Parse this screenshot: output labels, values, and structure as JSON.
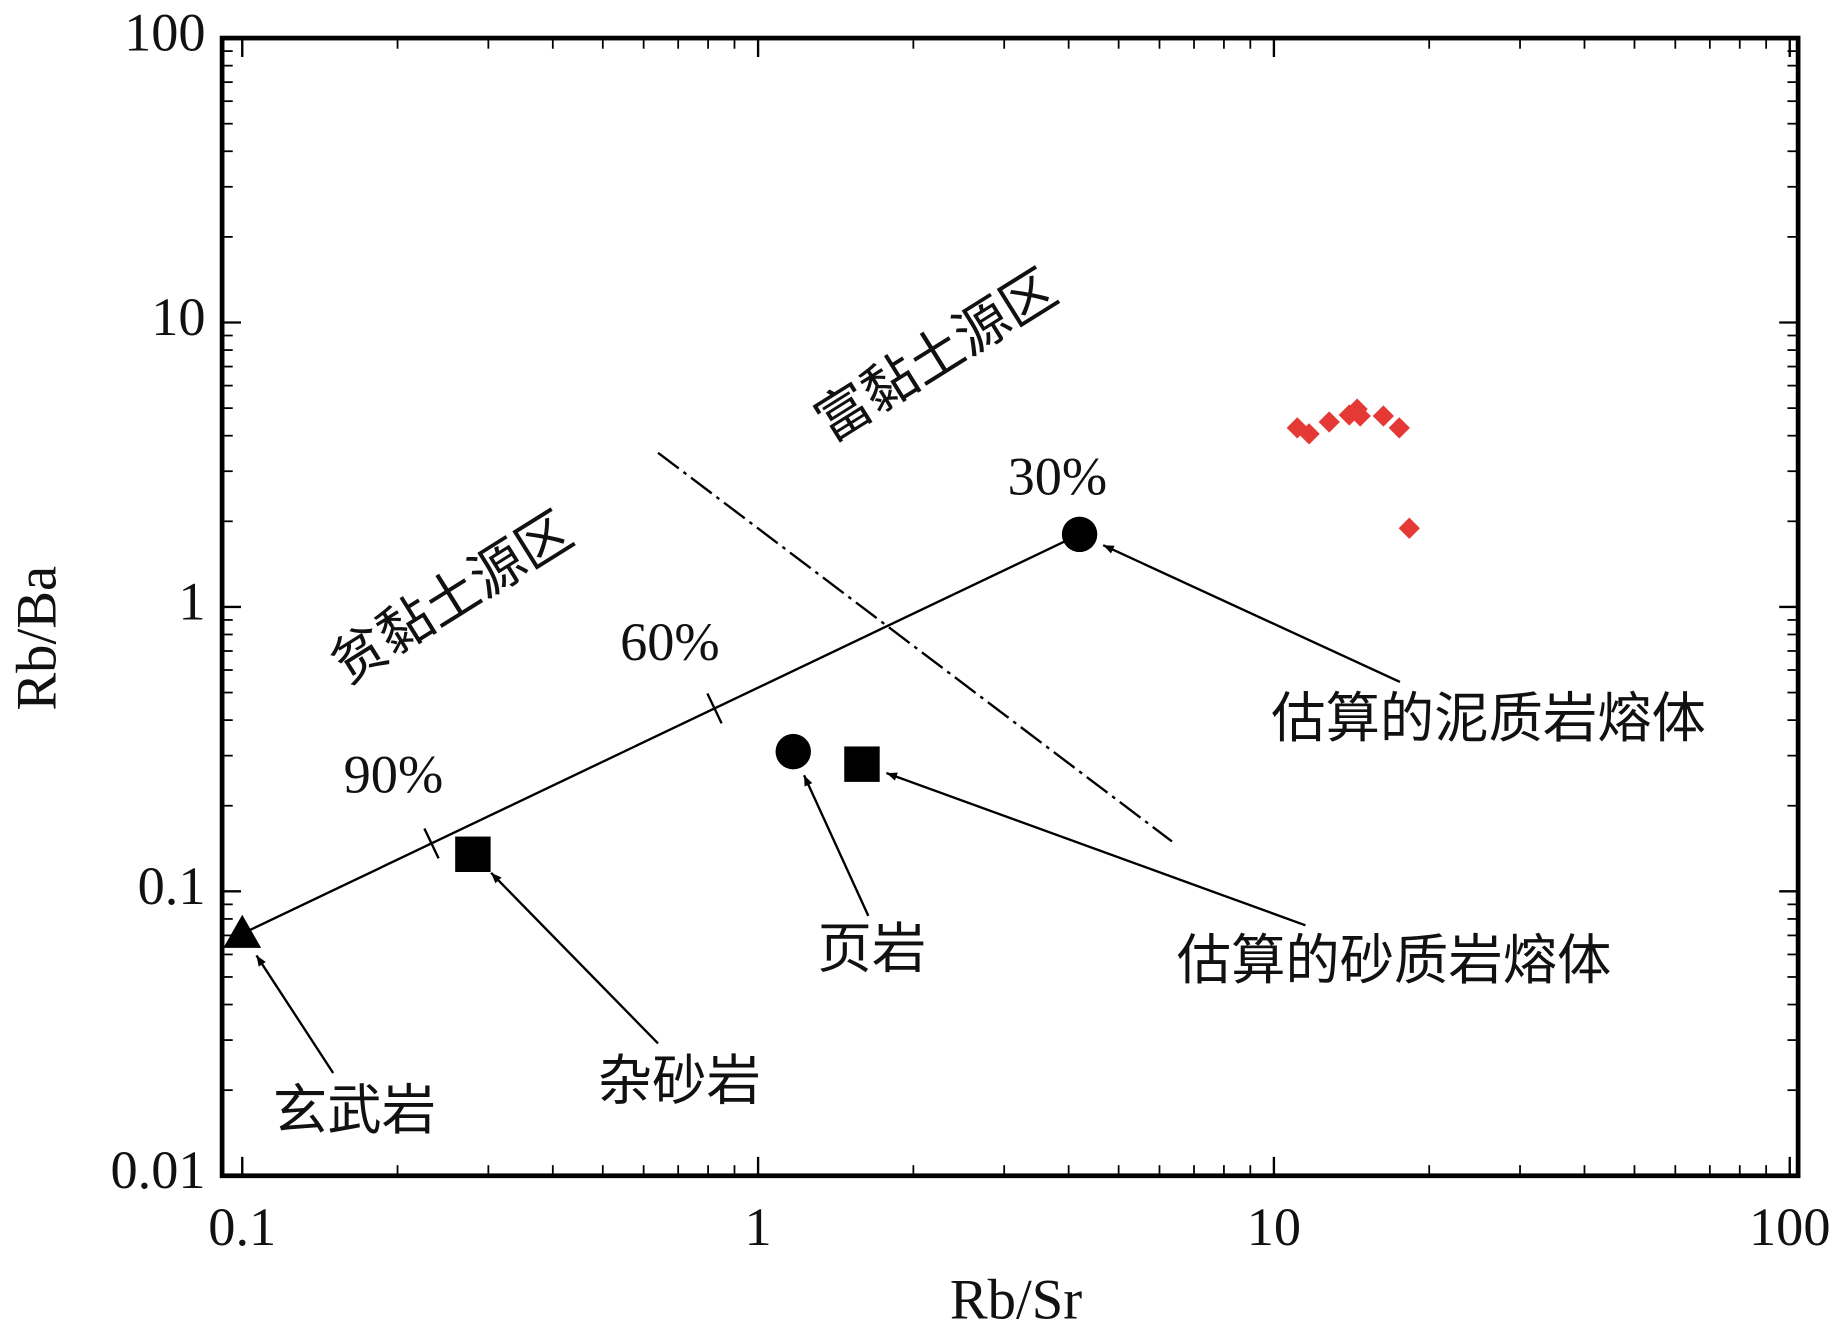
{
  "chart_data": {
    "type": "scatter",
    "xlabel": "Rb/Sr",
    "ylabel": "Rb/Ba",
    "xscale": "log",
    "yscale": "log",
    "xlim": [
      0.0914,
      103.8
    ],
    "ylim": [
      0.01,
      100
    ],
    "xticks": [
      0.1,
      1,
      10,
      100
    ],
    "yticks": [
      0.01,
      0.1,
      1,
      10,
      100
    ],
    "series": [
      {
        "name": "玄武岩",
        "marker": "triangle",
        "color": "#000000",
        "x": [
          0.1
        ],
        "values": [
          0.071
        ]
      },
      {
        "name": "杂砂岩",
        "marker": "square",
        "color": "#000000",
        "x": [
          0.28
        ],
        "values": [
          0.135
        ]
      },
      {
        "name": "页岩",
        "marker": "circle",
        "color": "#000000",
        "x": [
          1.17
        ],
        "values": [
          0.31
        ]
      },
      {
        "name": "估算的砂质岩熔体",
        "marker": "square",
        "color": "#000000",
        "x": [
          1.59
        ],
        "values": [
          0.28
        ]
      },
      {
        "name": "估算的泥质岩熔体",
        "marker": "circle",
        "color": "#000000",
        "x": [
          4.2
        ],
        "values": [
          1.8
        ]
      },
      {
        "marker": "diamond",
        "color": "#e53935",
        "x": [
          11.1,
          11.7,
          12.8,
          14.0,
          14.5,
          14.7,
          16.3,
          17.5,
          18.3
        ],
        "values": [
          4.26,
          4.06,
          4.47,
          4.73,
          4.96,
          4.69,
          4.69,
          4.26,
          1.89
        ]
      }
    ],
    "mixing_labels": [
      "90%",
      "60%",
      "30%"
    ],
    "region_labels": [
      "贫黏土源区",
      "富黏土源区"
    ]
  }
}
